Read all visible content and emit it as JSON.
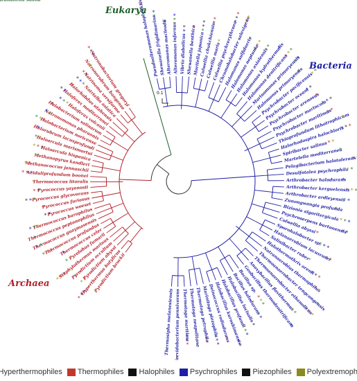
{
  "domains": {
    "eukarya": {
      "label": "Eukarya",
      "color": "#1e5c2a"
    },
    "bacteria": {
      "label": "Bacteria",
      "color": "#1f1fa6"
    },
    "archaea": {
      "label": "Archaea",
      "color": "#b3202a"
    }
  },
  "scale_label": "0.1",
  "legend": [
    {
      "label": "Hyperthermophiles",
      "color": "#5a0d12"
    },
    {
      "label": "Thermophiles",
      "color": "#c0392b"
    },
    {
      "label": "Halophiles",
      "color": "#111111"
    },
    {
      "label": "Psychrophiles",
      "color": "#1f1fa6"
    },
    {
      "label": "Piezophiles",
      "color": "#111111"
    },
    {
      "label": "Polyextremophiles",
      "color": "#8a8a1f"
    }
  ],
  "star_colors": {
    "green": "#2e8b3a",
    "red": "#c0392b",
    "blue": "#2424c8",
    "olive": "#a8a020",
    "dark": "#3a3a3a"
  },
  "eukarya_taxa": [
    "Dunaliella salina"
  ],
  "archaea_taxa": [
    "Natronobacterium gregoryi",
    "Natronorubrum bangense",
    "Natrinema versiforme",
    "Natrialba asiatica",
    "Halorhabdus utahensis",
    "Haloferax mediterranei",
    "Haloferax volcanii",
    "Halobacterium salinarum",
    "Natronomonas pharaonis",
    "Halobacterium noricense",
    "Halorubrum lacusprofundi",
    "Haloarcula marismortui",
    "Haloarcula hispanica",
    "Methanopyrus kandleri",
    "Methanococcus jannaschii",
    "Aciduliprofundum boonei",
    "Thermococcus litoralis",
    "Pyrococcus yayanosii",
    "Pyrococcus glycovorans",
    "Pyrococcus furiosus",
    "Pyrococcus woesei",
    "Thermococcus barophilus",
    "Thermococcus peptonophilus",
    "Thermococcus guaymasensis",
    "Thermococcus profundus",
    "Thermococcus celer",
    "Pyrolobus fumarii",
    "Staphylothermus marinus",
    "Pyrodictium occultum",
    "Pyrodictium abyssi",
    "Hyperthermus butylicus",
    "Pyrodictium brockii"
  ],
  "bacteria_taxa": [
    "Thermosipho melanesiensis",
    "Fervidobacterium pennivorans",
    "Thermotoga maritima",
    "Thermotoga neapolitana",
    "Thermotoga petrophila",
    "Marinitoga piezophila",
    "Deinococcus radiodurans",
    "Halobacillus kuroshimensis",
    "Halobacillus profundi",
    "Halobacillus locisalis",
    "Bacillus halodurans",
    "Bacillus sp. ",
    "Geobacillus thermodenitrificans",
    "Anoxybacillus flavithermus",
    "Thermoanaerobacter ethanolicus",
    "Thermoanaerobacter tengcongensis",
    "Natranaerobius thermophilus",
    "Halothermothrix orenii",
    "Salinibacter ruber",
    "Halanaerobium lacusrosei",
    "Sporohalobacter sp.",
    "Colwellia abyssi",
    "Psychroserpens burtonensis",
    "Bizionia algoritergicola",
    "Zunongwangia profunda",
    "Arthrobacter ardleyensis",
    "Arthrobacter kerguelensis",
    "Arthrobacter halodurans",
    "Desulfotalea psychrophila",
    "Pelagibacterium halotolerans",
    "Martelella mediterranea",
    "Spiribacter salinus",
    "Halorhodospira halochloris",
    "Thioprofundum lithotrophicum",
    "Psychrobacter maritimus",
    "Psychrobacter marincola",
    "Psychrobacter arenosus",
    "Psychrobacter oceani",
    "Psychrobacter pacificensis",
    "Halomonas primoryensis",
    "Marinomonas primoryensis",
    "Halomonas denitrificans",
    "Halomonas hydrothermalis",
    "Halomonas axialensis",
    "Halomonas neptunia",
    "Halomonas sulfidaeris",
    "Chromohalobacter salexigens",
    "Colwellia psychrerythraea",
    "Colwellia maris",
    "Colwellia chukchiensis",
    "Moritella japonica",
    "Shewanella benthica",
    "Vibrio diabolicus",
    "Alteromonas infernus",
    "Alteromonas macleodii",
    "Shewanella frigidimarina",
    "Pseudoalteromonas haloplanktis"
  ]
}
